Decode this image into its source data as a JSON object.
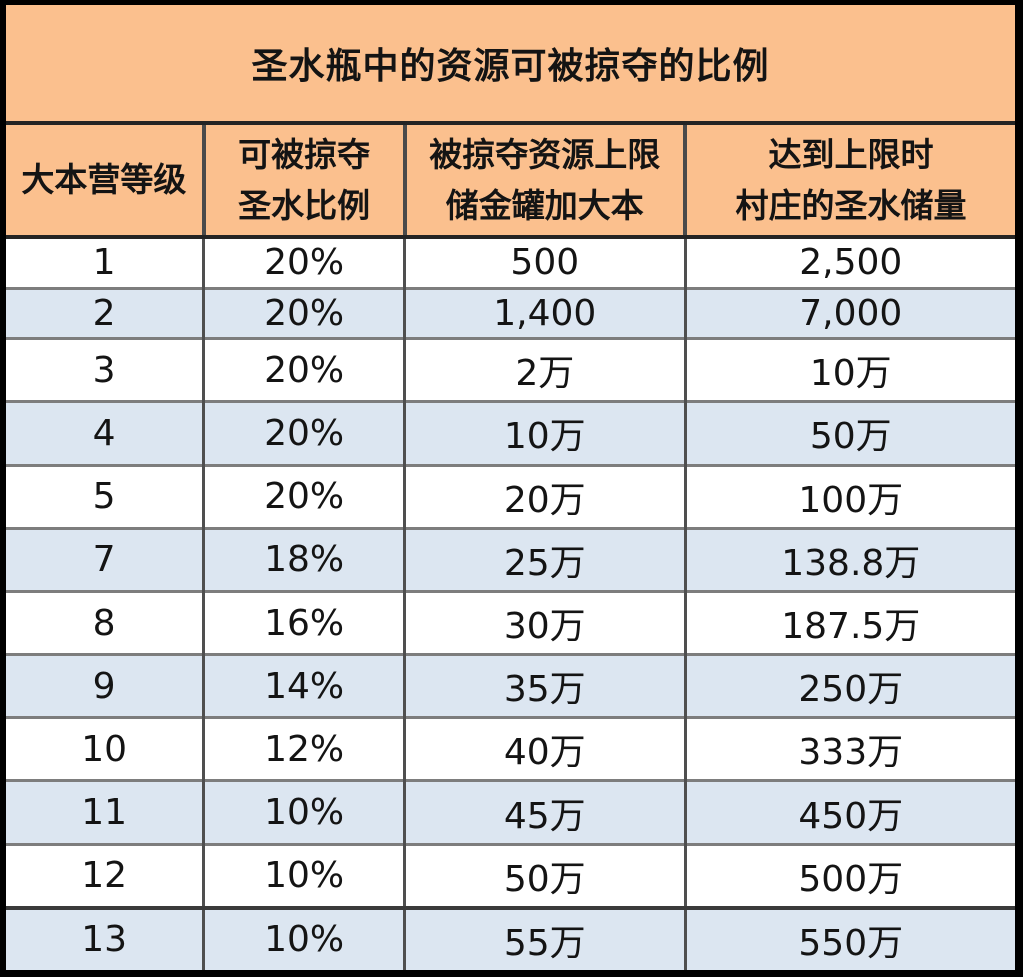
{
  "table": {
    "title": "圣水瓶中的资源可被掠夺的比例",
    "headers": [
      {
        "lines": [
          "大本营等级",
          ""
        ]
      },
      {
        "lines": [
          "可被掠夺",
          "圣水比例"
        ]
      },
      {
        "lines": [
          "被掠夺资源上限",
          "储金罐加大本"
        ]
      },
      {
        "lines": [
          "达到上限时",
          "村庄的圣水储量"
        ]
      }
    ],
    "rows": [
      {
        "level": "1",
        "percent": "20%",
        "cap": "500",
        "storage": "2,500"
      },
      {
        "level": "2",
        "percent": "20%",
        "cap": "1,400",
        "storage": "7,000"
      },
      {
        "level": "3",
        "percent": "20%",
        "cap": "2万",
        "storage": "10万"
      },
      {
        "level": "4",
        "percent": "20%",
        "cap": "10万",
        "storage": "50万"
      },
      {
        "level": "5",
        "percent": "20%",
        "cap": "20万",
        "storage": "100万"
      },
      {
        "level": "7",
        "percent": "18%",
        "cap": "25万",
        "storage": "138.8万"
      },
      {
        "level": "8",
        "percent": "16%",
        "cap": "30万",
        "storage": "187.5万"
      },
      {
        "level": "9",
        "percent": "14%",
        "cap": "35万",
        "storage": "250万"
      },
      {
        "level": "10",
        "percent": "12%",
        "cap": "40万",
        "storage": "333万"
      },
      {
        "level": "11",
        "percent": "10%",
        "cap": "45万",
        "storage": "450万"
      },
      {
        "level": "12",
        "percent": "10%",
        "cap": "50万",
        "storage": "500万"
      },
      {
        "level": "13",
        "percent": "10%",
        "cap": "55万",
        "storage": "550万"
      }
    ],
    "colors": {
      "header_bg": "#fbc08e",
      "row_bg": "#ffffff",
      "row_alt_bg": "#dce6f1",
      "grid_line": "#7d7d7d",
      "outer_frame": "#000000"
    }
  }
}
